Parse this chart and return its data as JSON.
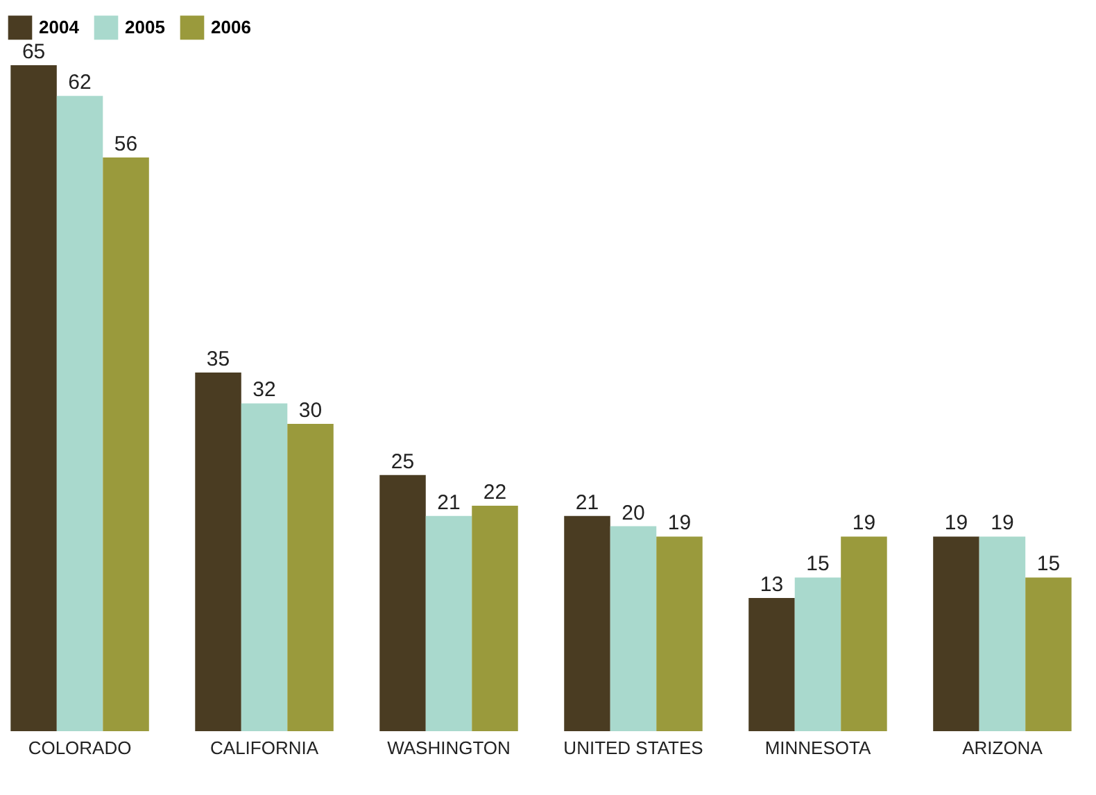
{
  "chart_data": {
    "type": "bar",
    "categories": [
      "COLORADO",
      "CALIFORNIA",
      "WASHINGTON",
      "UNITED STATES",
      "MINNESOTA",
      "ARIZONA"
    ],
    "series": [
      {
        "name": "2004",
        "color": "#4a3c22",
        "values": [
          65,
          35,
          25,
          21,
          13,
          19
        ]
      },
      {
        "name": "2005",
        "color": "#a9d9cd",
        "values": [
          62,
          32,
          21,
          20,
          15,
          19
        ]
      },
      {
        "name": "2006",
        "color": "#9a9a3c",
        "values": [
          56,
          30,
          22,
          19,
          19,
          15
        ]
      }
    ],
    "data_labels": true,
    "legend": "top",
    "grid": false
  }
}
